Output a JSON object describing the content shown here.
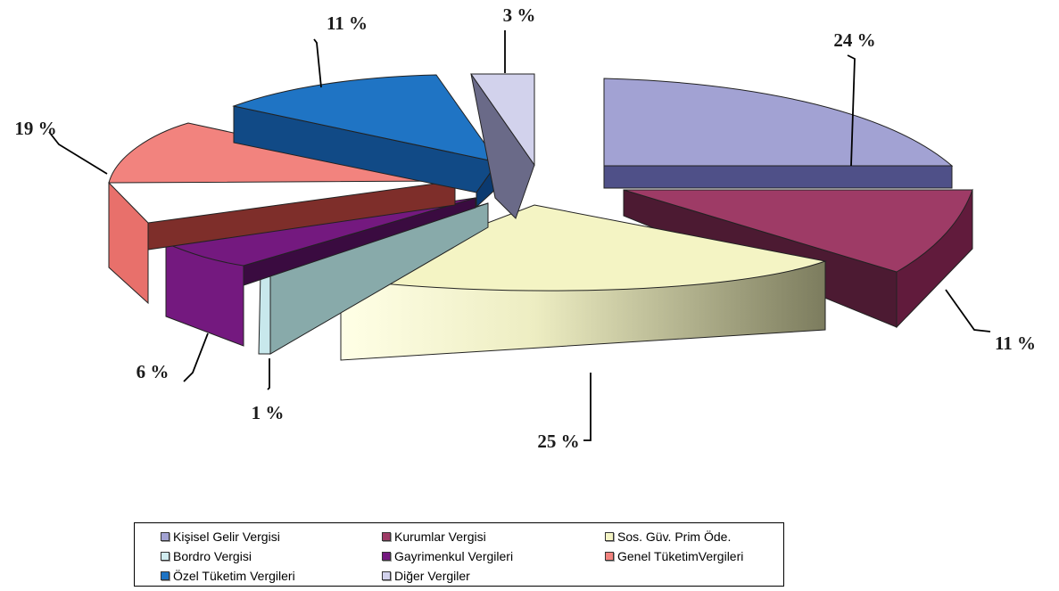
{
  "chart_data": {
    "type": "pie",
    "style": "3d-exploded",
    "title": "",
    "slices": [
      {
        "label": "Kişisel Gelir Vergisi",
        "value": 24,
        "display": "24 %",
        "color": "#a2a2d3"
      },
      {
        "label": "Kurumlar Vergisi",
        "value": 11,
        "display": "11 %",
        "color": "#9e3b66"
      },
      {
        "label": "Sos. Güv. Prim Öde.",
        "value": 25,
        "display": "25 %",
        "color": "#f4f4c4"
      },
      {
        "label": "Bordro Vergisi",
        "value": 1,
        "display": "1 %",
        "color": "#d0ecf0"
      },
      {
        "label": "Gayrimenkul Vergileri",
        "value": 6,
        "display": "6 %",
        "color": "#74197f"
      },
      {
        "label": "Genel TüketimVergileri",
        "value": 19,
        "display": "19 %",
        "color": "#f2837e"
      },
      {
        "label": "Özel Tüketim Vergileri",
        "value": 11,
        "display": "11 %",
        "color": "#1f74c4"
      },
      {
        "label": "Diğer Vergiler",
        "value": 3,
        "display": "3 %",
        "color": "#d2d2ec"
      }
    ],
    "legend_position": "bottom"
  }
}
